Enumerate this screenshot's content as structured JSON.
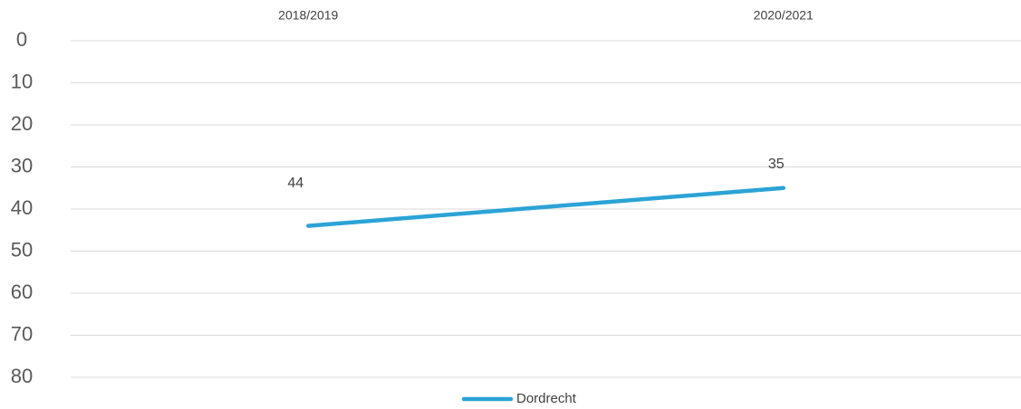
{
  "chart_data": {
    "type": "line",
    "categories": [
      "2018/2019",
      "2020/2021"
    ],
    "series": [
      {
        "name": "Dordrecht",
        "color": "#2ba3d6",
        "values": [
          44,
          35
        ]
      }
    ],
    "ylim": [
      0,
      80
    ],
    "yticks": [
      0,
      10,
      20,
      30,
      40,
      50,
      60,
      70,
      80
    ],
    "inverted": true,
    "grid": true,
    "legend": "bottom",
    "data_labels": true
  }
}
